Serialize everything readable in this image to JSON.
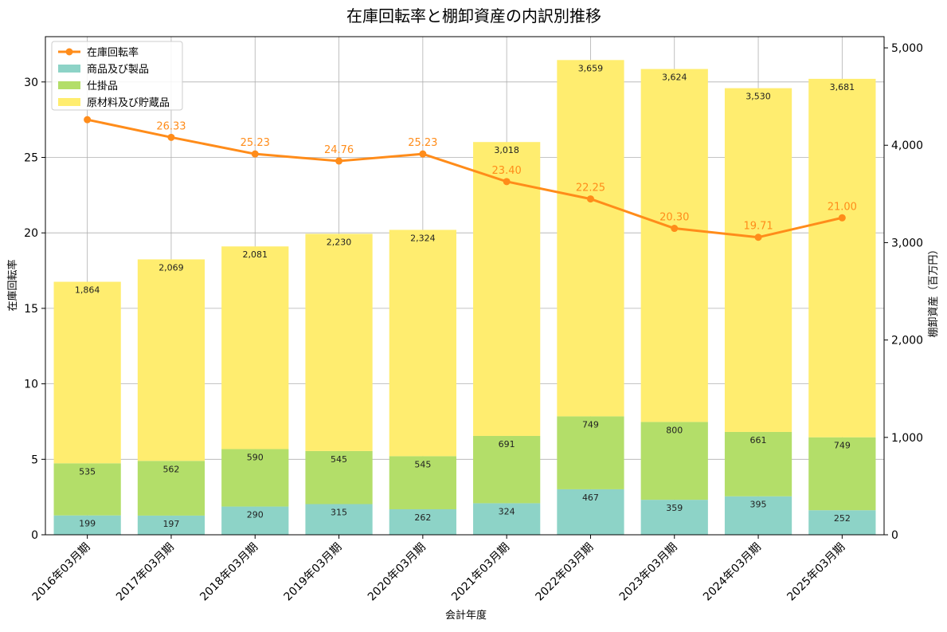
{
  "chart_data": {
    "type": "bar",
    "title": "在庫回転率と棚卸資産の内訳別推移",
    "xlabel": "会計年度",
    "ylabel_left": "在庫回転率",
    "ylabel_right": "棚卸資産（百万円）",
    "ylim_left": [
      0,
      33
    ],
    "ylim_right": [
      0,
      5115
    ],
    "yticks_left": [
      0,
      5,
      10,
      15,
      20,
      25,
      30
    ],
    "yticks_right": [
      0,
      1000,
      2000,
      3000,
      4000,
      5000
    ],
    "yticks_right_labels": [
      "0",
      "1,000",
      "2,000",
      "3,000",
      "4,000",
      "5,000"
    ],
    "grid": true,
    "legend_position": "top-left",
    "categories": [
      "2016年03月期",
      "2017年03月期",
      "2018年03月期",
      "2019年03月期",
      "2020年03月期",
      "2021年03月期",
      "2022年03月期",
      "2023年03月期",
      "2024年03月期",
      "2025年03月期"
    ],
    "series": [
      {
        "name": "商品及び製品",
        "kind": "stacked-bar",
        "axis": "right",
        "color": "#8dd3c7",
        "values": [
          199,
          197,
          290,
          315,
          262,
          324,
          467,
          359,
          395,
          252
        ],
        "labels": [
          "199",
          "197",
          "290",
          "315",
          "262",
          "324",
          "467",
          "359",
          "395",
          "252"
        ]
      },
      {
        "name": "仕掛品",
        "kind": "stacked-bar",
        "axis": "right",
        "color": "#b3de69",
        "values": [
          535,
          562,
          590,
          545,
          545,
          691,
          749,
          800,
          661,
          749
        ],
        "labels": [
          "535",
          "562",
          "590",
          "545",
          "545",
          "691",
          "749",
          "800",
          "661",
          "749"
        ]
      },
      {
        "name": "原材料及び貯蔵品",
        "kind": "stacked-bar",
        "axis": "right",
        "color": "#ffed6f",
        "values": [
          1864,
          2069,
          2081,
          2230,
          2324,
          3018,
          3659,
          3624,
          3530,
          3681
        ],
        "labels": [
          "1,864",
          "2,069",
          "2,081",
          "2,230",
          "2,324",
          "3,018",
          "3,659",
          "3,624",
          "3,530",
          "3,681"
        ]
      },
      {
        "name": "在庫回転率",
        "kind": "line",
        "axis": "left",
        "color": "#ff8c1a",
        "values": [
          27.5,
          26.33,
          25.23,
          24.76,
          25.23,
          23.4,
          22.25,
          20.3,
          19.71,
          21.0
        ],
        "labels": [
          "",
          "26.33",
          "25.23",
          "24.76",
          "25.23",
          "23.40",
          "22.25",
          "20.30",
          "19.71",
          "21.00"
        ]
      }
    ]
  }
}
